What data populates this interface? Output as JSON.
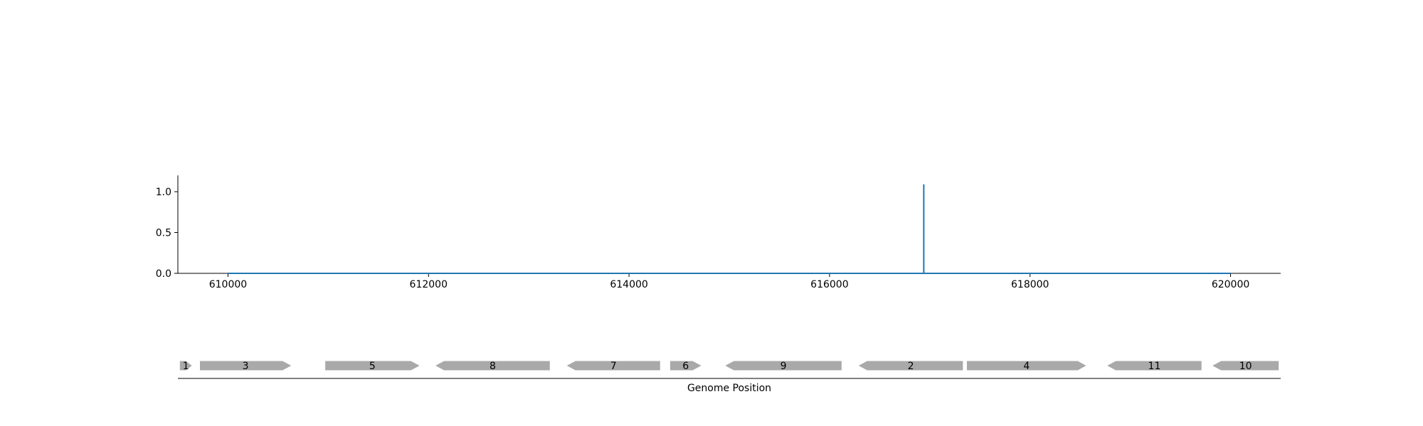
{
  "chart_data": [
    {
      "type": "line",
      "title": "",
      "xlabel": "",
      "ylabel": "",
      "xlim": [
        609500,
        620500
      ],
      "ylim": [
        0,
        1.2
      ],
      "x_ticks": [
        610000,
        612000,
        614000,
        616000,
        618000,
        620000
      ],
      "y_ticks": [
        0.0,
        0.5,
        1.0
      ],
      "grid": false,
      "line_color": "#1f77b4",
      "series": [
        {
          "x": [
            610000,
            616940,
            616940,
            616940,
            620000
          ],
          "y": [
            0.0,
            0.0,
            1.09,
            0.0,
            0.0
          ]
        }
      ]
    },
    {
      "type": "gene_track",
      "xlabel": "Genome Position",
      "xlim": [
        609500,
        620500
      ],
      "feature_color": "#a9a9a9",
      "genes": [
        {
          "label": "1",
          "start": 609520,
          "end": 609640,
          "strand": 1
        },
        {
          "label": "3",
          "start": 609720,
          "end": 610630,
          "strand": 1
        },
        {
          "label": "5",
          "start": 610970,
          "end": 611910,
          "strand": 1
        },
        {
          "label": "8",
          "start": 612070,
          "end": 613210,
          "strand": -1
        },
        {
          "label": "7",
          "start": 613380,
          "end": 614310,
          "strand": -1
        },
        {
          "label": "6",
          "start": 614410,
          "end": 614720,
          "strand": 1
        },
        {
          "label": "9",
          "start": 614960,
          "end": 616120,
          "strand": -1
        },
        {
          "label": "2",
          "start": 616290,
          "end": 617330,
          "strand": -1
        },
        {
          "label": "4",
          "start": 617370,
          "end": 618560,
          "strand": 1
        },
        {
          "label": "11",
          "start": 618770,
          "end": 619710,
          "strand": -1
        },
        {
          "label": "10",
          "start": 619820,
          "end": 620480,
          "strand": -1
        }
      ]
    }
  ]
}
